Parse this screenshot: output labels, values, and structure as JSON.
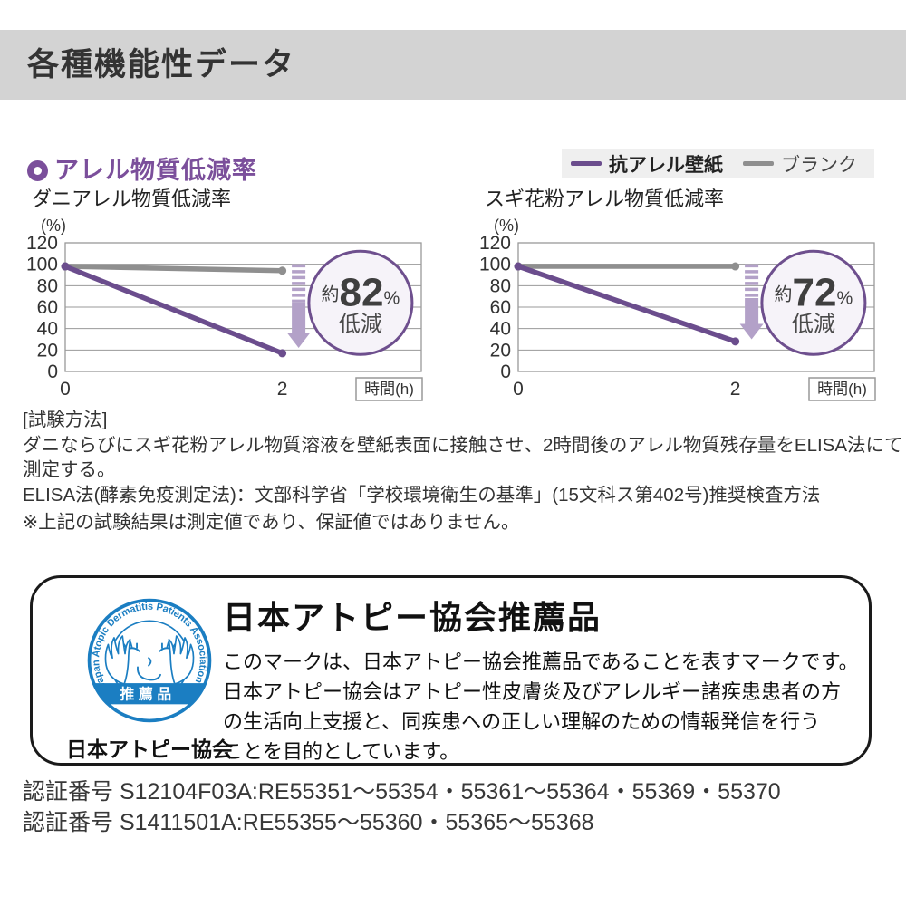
{
  "page": {
    "header": {
      "title": "各種機能性データ"
    },
    "section": {
      "title": "アレル物質低減率",
      "accent_color": "#7b4f9b",
      "legend": [
        {
          "label": "抗アレル壁紙",
          "color": "#6b4d8d"
        },
        {
          "label": "ブランク",
          "color": "#8f8f8f"
        }
      ]
    },
    "test_method": {
      "heading": "[試験方法]",
      "lines": [
        "ダニならびにスギ花粉アレル物質溶液を壁紙表面に接触させ、2時間後のアレル物質残存量をELISA法にて測定する。",
        "ELISA法(酵素免疫測定法)：文部科学省「学校環境衛生の基準」(15文科ス第402号)推奨検査方法"
      ],
      "note": "※上記の試験結果は測定値であり、保証値ではありません。"
    },
    "association_box": {
      "title": "日本アトピー協会推薦品",
      "body_lines": [
        "このマークは、日本アトピー協会推薦品であることを表すマークです。",
        "日本アトピー協会はアトピー性皮膚炎及びアレルギー諸疾患患者の方",
        "の生活向上支援と、同疾患への正しい理解のための情報発信を行う",
        "ことを目的としています。"
      ],
      "logo": {
        "ring_text": "Japan Atopic Dermatitis Patients Association",
        "badge_text": "推薦品",
        "caption": "日本アトピー協会",
        "color": "#1b7ec2"
      }
    },
    "certifications": [
      "認証番号 S12104F03A:RE55351〜55354・55361〜55364・55369・55370",
      "認証番号 S1411501A:RE55355〜55360・55365〜55368"
    ]
  },
  "chart_data": [
    {
      "type": "line",
      "title": "ダニアレル物質低減率",
      "ylabel": "(%)",
      "xlabel": "時間(h)",
      "xlim": [
        0,
        3.28
      ],
      "ylim": [
        0,
        120
      ],
      "y_ticks": [
        0,
        20,
        40,
        60,
        80,
        100,
        120
      ],
      "x_ticks": [
        0,
        2
      ],
      "grid": true,
      "series": [
        {
          "name": "抗アレル壁紙",
          "color": "#6b4d8d",
          "points": [
            [
              0,
              98
            ],
            [
              2,
              17
            ]
          ]
        },
        {
          "name": "ブランク",
          "color": "#8f8f8f",
          "points": [
            [
              0,
              98
            ],
            [
              2,
              94
            ]
          ]
        }
      ],
      "annotation": {
        "approx": "約",
        "value": "82",
        "unit": "%",
        "label": "低減",
        "arrow": {
          "x": 2.15,
          "from": 100,
          "to": 22,
          "color": "#b3a1c8"
        },
        "badge_center": {
          "x": 2.72,
          "y": 64
        },
        "badge_fill": "#f6f3f9",
        "badge_border": "#6e4f8e"
      }
    },
    {
      "type": "line",
      "title": "スギ花粉アレル物質低減率",
      "ylabel": "(%)",
      "xlabel": "時間(h)",
      "xlim": [
        0,
        3.28
      ],
      "ylim": [
        0,
        120
      ],
      "y_ticks": [
        0,
        20,
        40,
        60,
        80,
        100,
        120
      ],
      "x_ticks": [
        0,
        2
      ],
      "grid": true,
      "series": [
        {
          "name": "抗アレル壁紙",
          "color": "#6b4d8d",
          "points": [
            [
              0,
              98
            ],
            [
              2,
              28
            ]
          ]
        },
        {
          "name": "ブランク",
          "color": "#8f8f8f",
          "points": [
            [
              0,
              98
            ],
            [
              2,
              98
            ]
          ]
        }
      ],
      "annotation": {
        "approx": "約",
        "value": "72",
        "unit": "%",
        "label": "低減",
        "arrow": {
          "x": 2.15,
          "from": 100,
          "to": 30,
          "color": "#b3a1c8"
        },
        "badge_center": {
          "x": 2.72,
          "y": 64
        },
        "badge_fill": "#f6f3f9",
        "badge_border": "#6e4f8e"
      }
    }
  ]
}
